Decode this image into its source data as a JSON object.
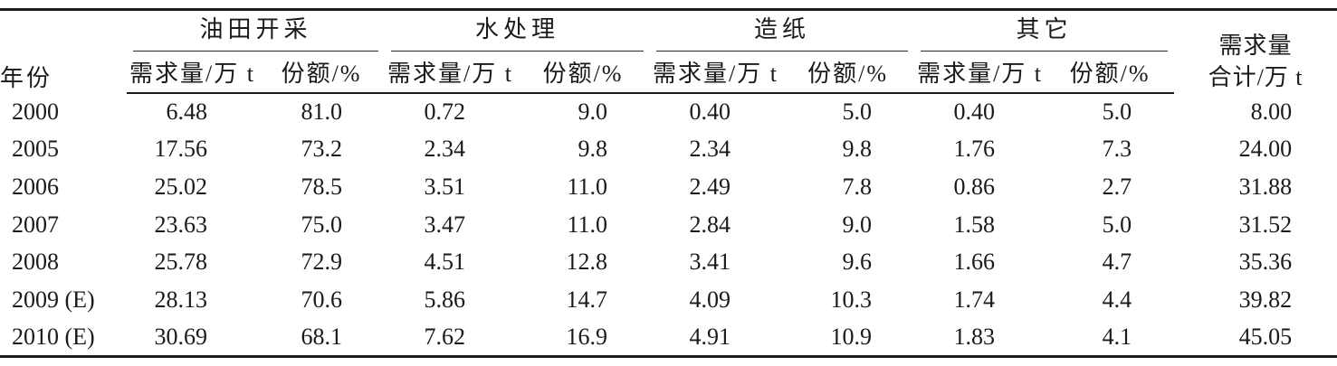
{
  "table": {
    "row_header": "年份",
    "groups": [
      {
        "label": "油田开采",
        "sub": [
          "需求量/万 t",
          "份额/%"
        ]
      },
      {
        "label": "水处理",
        "sub": [
          "需求量/万 t",
          "份额/%"
        ]
      },
      {
        "label": "造纸",
        "sub": [
          "需求量/万 t",
          "份额/%"
        ]
      },
      {
        "label": "其它",
        "sub": [
          "需求量/万 t",
          "份额/%"
        ]
      }
    ],
    "total_header_line1": "需求量",
    "total_header_line2": "合计/万 t",
    "rows": [
      [
        "2000",
        "6.48",
        "81.0",
        "0.72",
        "9.0",
        "0.40",
        "5.0",
        "0.40",
        "5.0",
        "8.00"
      ],
      [
        "2005",
        "17.56",
        "73.2",
        "2.34",
        "9.8",
        "2.34",
        "9.8",
        "1.76",
        "7.3",
        "24.00"
      ],
      [
        "2006",
        "25.02",
        "78.5",
        "3.51",
        "11.0",
        "2.49",
        "7.8",
        "0.86",
        "2.7",
        "31.88"
      ],
      [
        "2007",
        "23.63",
        "75.0",
        "3.47",
        "11.0",
        "2.84",
        "9.0",
        "1.58",
        "5.0",
        "31.52"
      ],
      [
        "2008",
        "25.78",
        "72.9",
        "4.51",
        "12.8",
        "3.41",
        "9.6",
        "1.66",
        "4.7",
        "35.36"
      ],
      [
        "2009 (E)",
        "28.13",
        "70.6",
        "5.86",
        "14.7",
        "4.09",
        "10.3",
        "1.74",
        "4.4",
        "39.82"
      ],
      [
        "2010 (E)",
        "30.69",
        "68.1",
        "7.62",
        "16.9",
        "4.91",
        "10.9",
        "1.83",
        "4.1",
        "45.05"
      ]
    ]
  },
  "colors": {
    "text": "#1a1a1a",
    "rule_thick": "#1c1c1c",
    "rule_thin": "#2a2a2a",
    "background": "#ffffff"
  }
}
